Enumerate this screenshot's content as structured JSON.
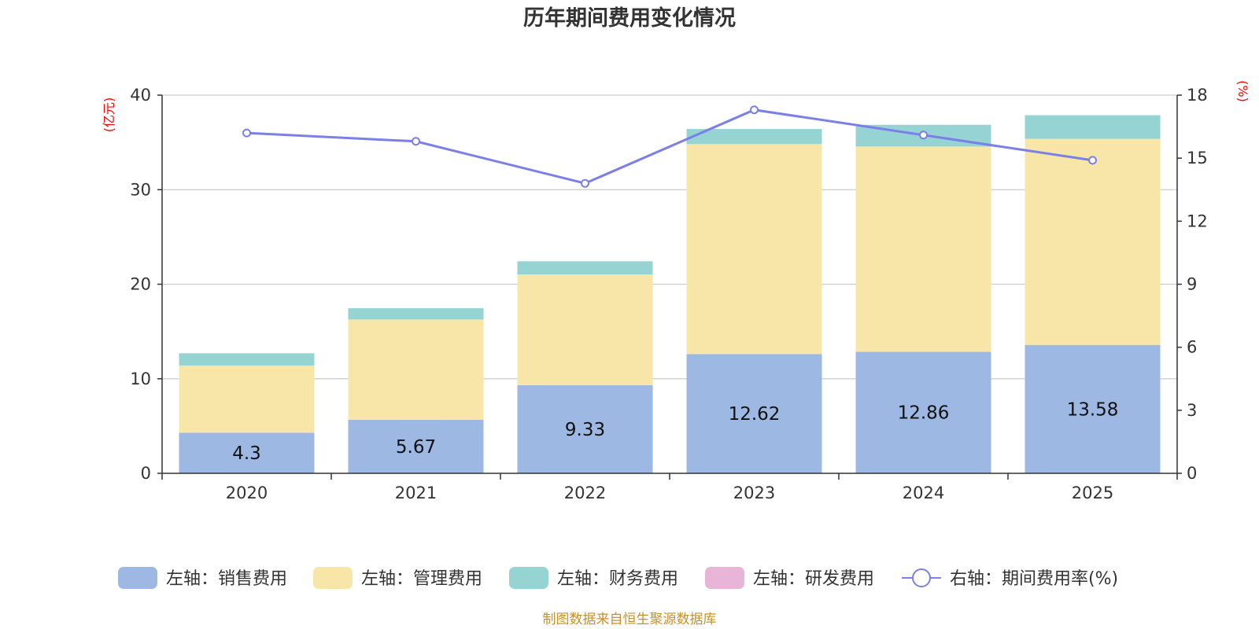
{
  "chart_data": {
    "type": "bar",
    "stacked": true,
    "title": "历年期间费用变化情况",
    "categories": [
      "2020",
      "2021",
      "2022",
      "2023",
      "2024",
      "2025"
    ],
    "left_axis": {
      "unit": "(亿元)",
      "ylim": [
        0,
        40
      ],
      "ticks": [
        0,
        10,
        20,
        30,
        40
      ]
    },
    "right_axis": {
      "unit": "(%)",
      "ylim": [
        0,
        18
      ],
      "ticks": [
        0,
        3,
        6,
        9,
        12,
        15,
        18
      ]
    },
    "series": [
      {
        "name": "左轴：销售费用",
        "axis": "left",
        "color": "#9db8e2",
        "values": [
          4.3,
          5.67,
          9.33,
          12.62,
          12.86,
          13.58
        ],
        "labels": [
          "4.3",
          "5.67",
          "9.33",
          "12.62",
          "12.86",
          "13.58"
        ]
      },
      {
        "name": "左轴：管理费用",
        "axis": "left",
        "color": "#f8e6a8",
        "values": [
          7.1,
          10.6,
          11.7,
          22.2,
          21.7,
          21.8
        ]
      },
      {
        "name": "左轴：财务费用",
        "axis": "left",
        "color": "#96d4d4",
        "values": [
          1.3,
          1.2,
          1.4,
          1.6,
          2.3,
          2.5
        ]
      },
      {
        "name": "左轴：研发费用",
        "axis": "left",
        "color": "#e8b4d8",
        "values": [
          0,
          0,
          0,
          0,
          0,
          0
        ]
      }
    ],
    "line_series": {
      "name": "右轴：期间费用率(%)",
      "axis": "right",
      "color": "#7b7fe8",
      "values": [
        16.2,
        15.8,
        13.8,
        17.3,
        16.1,
        14.9
      ]
    },
    "grid": true,
    "legend_position": "bottom"
  },
  "source_note": "制图数据来自恒生聚源数据库"
}
